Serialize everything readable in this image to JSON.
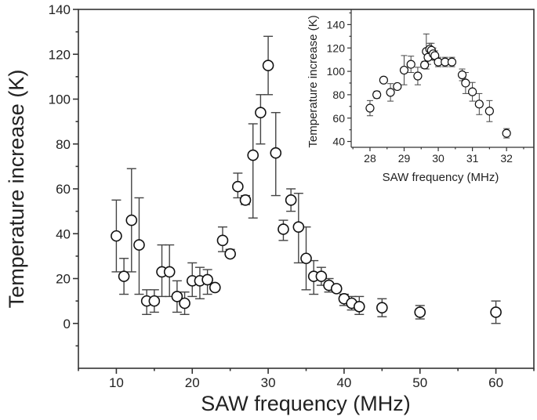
{
  "chart_data": [
    {
      "type": "scatter",
      "xlabel": "SAW frequency (MHz)",
      "ylabel": "Temperature increase (K)",
      "xlim": [
        5,
        65
      ],
      "ylim": [
        -20,
        140
      ],
      "xticks": [
        10,
        20,
        30,
        40,
        50,
        60
      ],
      "yticks": [
        0,
        20,
        40,
        60,
        80,
        100,
        120,
        140
      ],
      "grid": false,
      "marker": "open-circle",
      "error_bars": true,
      "points": [
        {
          "x": 10,
          "y": 39,
          "lo": 23,
          "hi": 55
        },
        {
          "x": 11,
          "y": 21,
          "lo": 13,
          "hi": 29
        },
        {
          "x": 12,
          "y": 46,
          "lo": 23,
          "hi": 69
        },
        {
          "x": 13,
          "y": 35,
          "lo": 13,
          "hi": 56
        },
        {
          "x": 14,
          "y": 10,
          "lo": 4,
          "hi": 15
        },
        {
          "x": 15,
          "y": 10,
          "lo": 5,
          "hi": 15
        },
        {
          "x": 16,
          "y": 23,
          "lo": 12,
          "hi": 35
        },
        {
          "x": 17,
          "y": 23,
          "lo": 12,
          "hi": 35
        },
        {
          "x": 18,
          "y": 12,
          "lo": 5,
          "hi": 19
        },
        {
          "x": 19,
          "y": 9,
          "lo": 4,
          "hi": 14
        },
        {
          "x": 20,
          "y": 19,
          "lo": 12,
          "hi": 27
        },
        {
          "x": 21,
          "y": 19,
          "lo": 11,
          "hi": 25
        },
        {
          "x": 22,
          "y": 19.5,
          "lo": 13,
          "hi": 24
        },
        {
          "x": 23,
          "y": 16,
          "lo": 15,
          "hi": 17
        },
        {
          "x": 24,
          "y": 37,
          "lo": 32,
          "hi": 43
        },
        {
          "x": 25,
          "y": 31,
          "lo": 30,
          "hi": 33
        },
        {
          "x": 26,
          "y": 61,
          "lo": 56,
          "hi": 67
        },
        {
          "x": 27,
          "y": 55,
          "lo": 53,
          "hi": 57
        },
        {
          "x": 28,
          "y": 75,
          "lo": 47,
          "hi": 89
        },
        {
          "x": 29,
          "y": 94,
          "lo": 80,
          "hi": 102
        },
        {
          "x": 30,
          "y": 115,
          "lo": 102,
          "hi": 128
        },
        {
          "x": 31,
          "y": 76,
          "lo": 57,
          "hi": 94
        },
        {
          "x": 32,
          "y": 42,
          "lo": 37,
          "hi": 46
        },
        {
          "x": 33,
          "y": 55,
          "lo": 50,
          "hi": 60
        },
        {
          "x": 34,
          "y": 43,
          "lo": 27,
          "hi": 58
        },
        {
          "x": 35,
          "y": 29,
          "lo": 15,
          "hi": 43
        },
        {
          "x": 36,
          "y": 21,
          "lo": 13,
          "hi": 28
        },
        {
          "x": 37,
          "y": 21,
          "lo": 17,
          "hi": 25
        },
        {
          "x": 38,
          "y": 17,
          "lo": 14,
          "hi": 20
        },
        {
          "x": 39,
          "y": 15.5,
          "lo": 14,
          "hi": 17
        },
        {
          "x": 40,
          "y": 11,
          "lo": 8,
          "hi": 13
        },
        {
          "x": 41,
          "y": 9,
          "lo": 6,
          "hi": 12
        },
        {
          "x": 42,
          "y": 7.5,
          "lo": 4,
          "hi": 12
        },
        {
          "x": 45,
          "y": 7,
          "lo": 3,
          "hi": 11
        },
        {
          "x": 50,
          "y": 5,
          "lo": 2,
          "hi": 8
        },
        {
          "x": 60,
          "y": 5,
          "lo": 0,
          "hi": 10
        }
      ]
    },
    {
      "type": "scatter",
      "placement": "inset top-right",
      "xlabel": "SAW frequency (MHz)",
      "ylabel": "Temperature increase (K)",
      "xlim": [
        27.45,
        32.8
      ],
      "ylim": [
        35,
        153
      ],
      "xticks": [
        28,
        29,
        30,
        31,
        32
      ],
      "yticks": [
        40,
        60,
        80,
        100,
        120,
        140
      ],
      "grid": false,
      "marker": "open-circle",
      "error_bars": true,
      "points": [
        {
          "x": 28,
          "y": 68.5,
          "err": 6.5
        },
        {
          "x": 28.2,
          "y": 80,
          "err": 3
        },
        {
          "x": 28.4,
          "y": 92.5,
          "err": 2
        },
        {
          "x": 28.6,
          "y": 82,
          "err": 7.5
        },
        {
          "x": 28.8,
          "y": 87,
          "err": 1
        },
        {
          "x": 29.0,
          "y": 101,
          "err": 12.5
        },
        {
          "x": 29.2,
          "y": 106,
          "err": 7
        },
        {
          "x": 29.4,
          "y": 96,
          "err": 7.5
        },
        {
          "x": 29.6,
          "y": 105.5,
          "err": 3
        },
        {
          "x": 29.65,
          "y": 117,
          "err": 15
        },
        {
          "x": 29.7,
          "y": 112,
          "err": 6
        },
        {
          "x": 29.75,
          "y": 119,
          "err": 5
        },
        {
          "x": 29.8,
          "y": 118,
          "err": 6
        },
        {
          "x": 29.85,
          "y": 115,
          "err": 5
        },
        {
          "x": 29.9,
          "y": 113.5,
          "err": 4
        },
        {
          "x": 30.0,
          "y": 108,
          "err": 4
        },
        {
          "x": 30.2,
          "y": 108,
          "err": 4
        },
        {
          "x": 30.4,
          "y": 108,
          "err": 4
        },
        {
          "x": 30.7,
          "y": 97,
          "err": 5
        },
        {
          "x": 30.8,
          "y": 90,
          "err": 9
        },
        {
          "x": 31.0,
          "y": 82.5,
          "err": 8
        },
        {
          "x": 31.2,
          "y": 72,
          "err": 9
        },
        {
          "x": 31.5,
          "y": 66,
          "err": 9
        },
        {
          "x": 32.0,
          "y": 47,
          "err": 4
        }
      ]
    }
  ]
}
